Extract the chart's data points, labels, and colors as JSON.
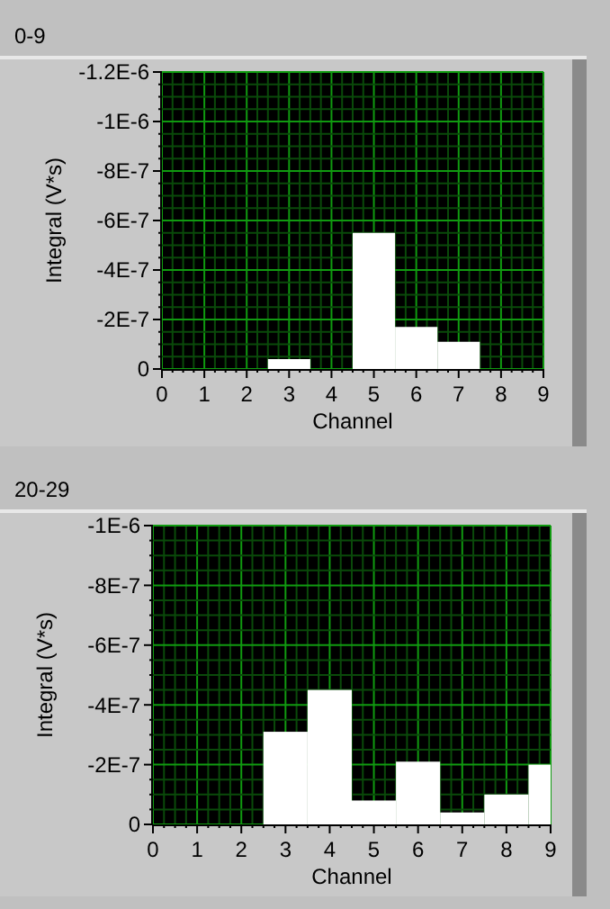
{
  "chart_data": [
    {
      "type": "bar",
      "title": "0-9",
      "xlabel": "Channel",
      "ylabel": "Integral (V*s)",
      "x": [
        0,
        1,
        2,
        3,
        4,
        5,
        6,
        7,
        8,
        9
      ],
      "series": [
        {
          "color": "#ffffff",
          "values": [
            0,
            0,
            0,
            -4e-08,
            0,
            -5.5e-07,
            -1.7e-07,
            -1.1e-07,
            0,
            0
          ]
        }
      ],
      "xlim": [
        0,
        9
      ],
      "xticks": [
        0,
        {
          "value": 0.25,
          "label": null
        },
        {
          "value": 0.5,
          "label": null
        },
        {
          "value": 0.75,
          "label": null
        },
        1,
        {
          "value": 1.25,
          "label": null
        },
        {
          "value": 1.5,
          "label": null
        },
        {
          "value": 1.75,
          "label": null
        },
        2,
        {
          "value": 2.25,
          "label": null
        },
        {
          "value": 2.5,
          "label": null
        },
        {
          "value": 2.75,
          "label": null
        },
        3,
        {
          "value": 3.25,
          "label": null
        },
        {
          "value": 3.5,
          "label": null
        },
        {
          "value": 3.75,
          "label": null
        },
        4,
        {
          "value": 4.25,
          "label": null
        },
        {
          "value": 4.5,
          "label": null
        },
        {
          "value": 4.75,
          "label": null
        },
        5,
        {
          "value": 5.25,
          "label": null
        },
        {
          "value": 5.5,
          "label": null
        },
        {
          "value": 5.75,
          "label": null
        },
        6,
        {
          "value": 6.25,
          "label": null
        },
        {
          "value": 6.5,
          "label": null
        },
        {
          "value": 6.75,
          "label": null
        },
        7,
        {
          "value": 7.25,
          "label": null
        },
        {
          "value": 7.5,
          "label": null
        },
        {
          "value": 7.75,
          "label": null
        },
        8,
        {
          "value": 8.25,
          "label": null
        },
        {
          "value": 8.5,
          "label": null
        },
        {
          "value": 8.75,
          "label": null
        },
        9
      ],
      "ylim": [
        0,
        -1.2e-06
      ],
      "yticks": [
        0,
        {
          "value": -5e-08,
          "label": null
        },
        {
          "value": -1e-07,
          "label": null
        },
        {
          "value": -1.5e-07,
          "label": null
        },
        {
          "value": -2e-07,
          "label": "-2E-7"
        },
        {
          "value": -2.5e-07,
          "label": null
        },
        {
          "value": -3e-07,
          "label": null
        },
        {
          "value": -3.5e-07,
          "label": null
        },
        {
          "value": -4e-07,
          "label": "-4E-7"
        },
        {
          "value": -4.5e-07,
          "label": null
        },
        {
          "value": -5e-07,
          "label": null
        },
        {
          "value": -5.5e-07,
          "label": null
        },
        {
          "value": -6e-07,
          "label": "-6E-7"
        },
        {
          "value": -6.5e-07,
          "label": null
        },
        {
          "value": -7e-07,
          "label": null
        },
        {
          "value": -7.5e-07,
          "label": null
        },
        {
          "value": -8e-07,
          "label": "-8E-7"
        },
        {
          "value": -8.5e-07,
          "label": null
        },
        {
          "value": -9e-07,
          "label": null
        },
        {
          "value": -9.5e-07,
          "label": null
        },
        {
          "value": -1e-06,
          "label": "-1E-6"
        },
        {
          "value": -1.05e-06,
          "label": null
        },
        {
          "value": -1.1e-06,
          "label": null
        },
        {
          "value": -1.15e-06,
          "label": null
        },
        {
          "value": -1.2e-06,
          "label": "-1.2E-6"
        }
      ],
      "grid": true
    },
    {
      "type": "bar",
      "title": "20-29",
      "xlabel": "Channel",
      "ylabel": "Integral (V*s)",
      "x": [
        0,
        1,
        2,
        3,
        4,
        5,
        6,
        7,
        8,
        9
      ],
      "series": [
        {
          "color": "#ffffff",
          "values": [
            0,
            0,
            0,
            -3.1e-07,
            -4.5e-07,
            -8e-08,
            -2.1e-07,
            -4e-08,
            -1e-07,
            -2e-07
          ]
        }
      ],
      "xlim": [
        0,
        9
      ],
      "xticks": [
        0,
        {
          "value": 0.25,
          "label": null
        },
        {
          "value": 0.5,
          "label": null
        },
        {
          "value": 0.75,
          "label": null
        },
        1,
        {
          "value": 1.25,
          "label": null
        },
        {
          "value": 1.5,
          "label": null
        },
        {
          "value": 1.75,
          "label": null
        },
        2,
        {
          "value": 2.25,
          "label": null
        },
        {
          "value": 2.5,
          "label": null
        },
        {
          "value": 2.75,
          "label": null
        },
        3,
        {
          "value": 3.25,
          "label": null
        },
        {
          "value": 3.5,
          "label": null
        },
        {
          "value": 3.75,
          "label": null
        },
        4,
        {
          "value": 4.25,
          "label": null
        },
        {
          "value": 4.5,
          "label": null
        },
        {
          "value": 4.75,
          "label": null
        },
        5,
        {
          "value": 5.25,
          "label": null
        },
        {
          "value": 5.5,
          "label": null
        },
        {
          "value": 5.75,
          "label": null
        },
        6,
        {
          "value": 6.25,
          "label": null
        },
        {
          "value": 6.5,
          "label": null
        },
        {
          "value": 6.75,
          "label": null
        },
        7,
        {
          "value": 7.25,
          "label": null
        },
        {
          "value": 7.5,
          "label": null
        },
        {
          "value": 7.75,
          "label": null
        },
        8,
        {
          "value": 8.25,
          "label": null
        },
        {
          "value": 8.5,
          "label": null
        },
        {
          "value": 8.75,
          "label": null
        },
        9
      ],
      "ylim": [
        0,
        -1e-06
      ],
      "yticks": [
        0,
        {
          "value": -5e-08,
          "label": null
        },
        {
          "value": -1e-07,
          "label": null
        },
        {
          "value": -1.5e-07,
          "label": null
        },
        {
          "value": -2e-07,
          "label": "-2E-7"
        },
        {
          "value": -2.5e-07,
          "label": null
        },
        {
          "value": -3e-07,
          "label": null
        },
        {
          "value": -3.5e-07,
          "label": null
        },
        {
          "value": -4e-07,
          "label": "-4E-7"
        },
        {
          "value": -4.5e-07,
          "label": null
        },
        {
          "value": -5e-07,
          "label": null
        },
        {
          "value": -5.5e-07,
          "label": null
        },
        {
          "value": -6e-07,
          "label": "-6E-7"
        },
        {
          "value": -6.5e-07,
          "label": null
        },
        {
          "value": -7e-07,
          "label": null
        },
        {
          "value": -7.5e-07,
          "label": null
        },
        {
          "value": -8e-07,
          "label": "-8E-7"
        },
        {
          "value": -8.5e-07,
          "label": null
        },
        {
          "value": -9e-07,
          "label": null
        },
        {
          "value": -9.5e-07,
          "label": null
        },
        {
          "value": -1e-06,
          "label": "-1E-6"
        }
      ],
      "grid": true
    }
  ]
}
